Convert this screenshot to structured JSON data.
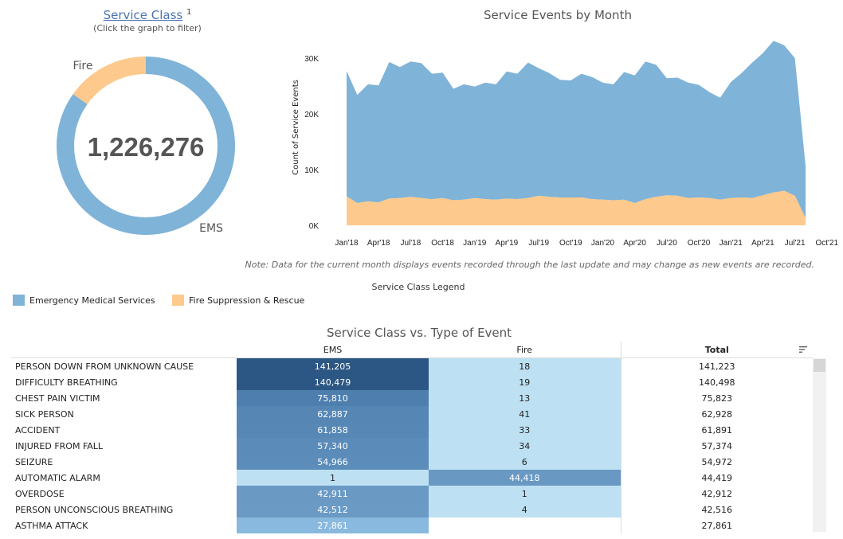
{
  "donut": {
    "title": "Service Class",
    "superscript": "1",
    "subtitle": "(Click the graph to filter)",
    "total_label": "1,226,276",
    "slices": [
      {
        "label": "EMS",
        "value": 1040000,
        "color": "#7fb3d8"
      },
      {
        "label": "Fire",
        "value": 186276,
        "color": "#fdc98c"
      }
    ]
  },
  "chart_data": {
    "type": "area",
    "title": "Service Events by Month",
    "ylabel": "Count of Service Events",
    "xlabel": "",
    "ylim": [
      0,
      33000
    ],
    "yticks": [
      0,
      10000,
      20000,
      30000
    ],
    "ytick_labels": [
      "0K",
      "10K",
      "20K",
      "30K"
    ],
    "xtick_labels": [
      "Jan'18",
      "Apr'18",
      "Jul'18",
      "Oct'18",
      "Jan'19",
      "Apr'19",
      "Jul'19",
      "Oct'19",
      "Jan'20",
      "Apr'20",
      "Jul'20",
      "Oct'20",
      "Jan'21",
      "Apr'21",
      "Jul'21",
      "Oct'21"
    ],
    "stacked": true,
    "series": [
      {
        "name": "Emergency Medical Services",
        "color": "#7fb3d8",
        "values": [
          22500,
          19400,
          21000,
          21000,
          24500,
          23500,
          24300,
          24200,
          22500,
          22500,
          20000,
          20700,
          20000,
          20900,
          20700,
          22800,
          22500,
          24300,
          22900,
          22200,
          21100,
          21000,
          22200,
          21900,
          21000,
          20800,
          22900,
          22900,
          24700,
          23700,
          21000,
          21200,
          20700,
          20200,
          19000,
          18300,
          20800,
          22300,
          24300,
          25500,
          27200,
          26100,
          24700,
          9400
        ]
      },
      {
        "name": "Fire Suppression & Rescue",
        "color": "#fdc98c",
        "values": [
          5200,
          4000,
          4300,
          4100,
          4800,
          4900,
          5100,
          4900,
          4700,
          4900,
          4500,
          4600,
          4900,
          4700,
          4600,
          4800,
          4700,
          4900,
          5300,
          5100,
          5000,
          5000,
          5000,
          4700,
          4600,
          4500,
          4600,
          4000,
          4700,
          5100,
          5400,
          5300,
          4900,
          5000,
          4900,
          4600,
          4900,
          5000,
          4900,
          5400,
          5900,
          6200,
          5300,
          1300
        ]
      }
    ]
  },
  "note": "Note: Data for the current month displays events recorded through the last update and may change as new events are recorded.",
  "legend": {
    "title": "Service Class Legend",
    "items": [
      {
        "label": "Emergency Medical Services",
        "color": "#7fb3d8"
      },
      {
        "label": "Fire Suppression & Rescue",
        "color": "#fdc98c"
      }
    ]
  },
  "table": {
    "title": "Service Class vs. Type of Event",
    "headers": {
      "ems": "EMS",
      "fire": "Fire",
      "total": "Total"
    },
    "rows": [
      {
        "type": "PERSON DOWN FROM UNKNOWN CAUSE",
        "ems": "141,205",
        "fire": "18",
        "total": "141,223",
        "ems_color": "#2c5784",
        "fire_color": "#bde0f2"
      },
      {
        "type": "DIFFICULTY BREATHING",
        "ems": "140,479",
        "fire": "19",
        "total": "140,498",
        "ems_color": "#2c5784",
        "fire_color": "#bde0f2"
      },
      {
        "type": "CHEST PAIN VICTIM",
        "ems": "75,810",
        "fire": "13",
        "total": "75,823",
        "ems_color": "#4d7eae",
        "fire_color": "#bde0f2"
      },
      {
        "type": "SICK PERSON",
        "ems": "62,887",
        "fire": "41",
        "total": "62,928",
        "ems_color": "#5686b4",
        "fire_color": "#bde0f2"
      },
      {
        "type": "ACCIDENT",
        "ems": "61,858",
        "fire": "33",
        "total": "61,891",
        "ems_color": "#5787b5",
        "fire_color": "#bde0f2"
      },
      {
        "type": "INJURED FROM FALL",
        "ems": "57,340",
        "fire": "34",
        "total": "57,374",
        "ems_color": "#5a8bb9",
        "fire_color": "#bde0f2"
      },
      {
        "type": "SEIZURE",
        "ems": "54,966",
        "fire": "6",
        "total": "54,972",
        "ems_color": "#5c8dba",
        "fire_color": "#bde0f2"
      },
      {
        "type": "AUTOMATIC ALARM",
        "ems": "1",
        "fire": "44,418",
        "total": "44,419",
        "ems_color": "#bde0f2",
        "fire_color": "#6998c3"
      },
      {
        "type": "OVERDOSE",
        "ems": "42,911",
        "fire": "1",
        "total": "42,912",
        "ems_color": "#6a99c4",
        "fire_color": "#bde0f2"
      },
      {
        "type": "PERSON UNCONSCIOUS BREATHING",
        "ems": "42,512",
        "fire": "4",
        "total": "42,516",
        "ems_color": "#6b9ac5",
        "fire_color": "#bde0f2"
      },
      {
        "type": "ASTHMA ATTACK",
        "ems": "27,861",
        "fire": "",
        "total": "27,861",
        "ems_color": "#89b9de",
        "fire_color": "#ffffff"
      }
    ]
  }
}
